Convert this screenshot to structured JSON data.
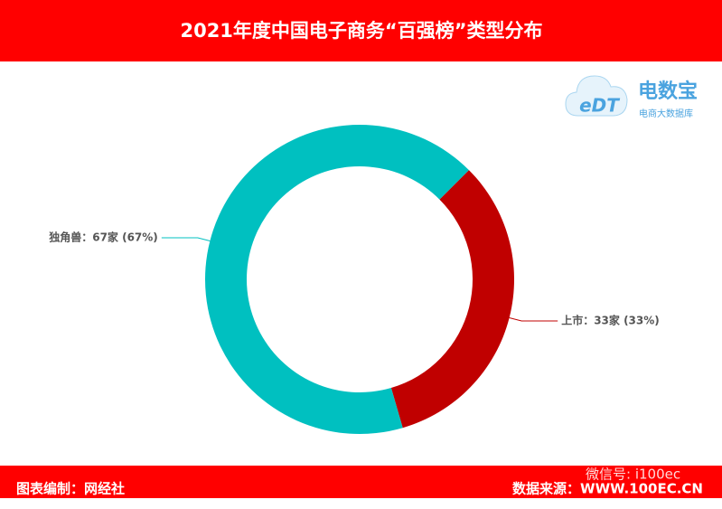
{
  "chart_data": {
    "type": "donut",
    "title": "2021年度中国电子商务“百强榜”类型分布",
    "values": [
      33,
      67
    ],
    "value_labels": [
      "上市：33家 (33%)",
      "独角兽：67家 (67%)"
    ],
    "colors": [
      "#c00000",
      "#00c0c0"
    ],
    "credit": "图表编制：网经社",
    "source": "数据来源：WWW.100EC.CN",
    "watermark": "微信号: i100ec",
    "logo_mark": "eDT",
    "logo_name": "电数宝",
    "logo_sub": "电商大数据库"
  }
}
